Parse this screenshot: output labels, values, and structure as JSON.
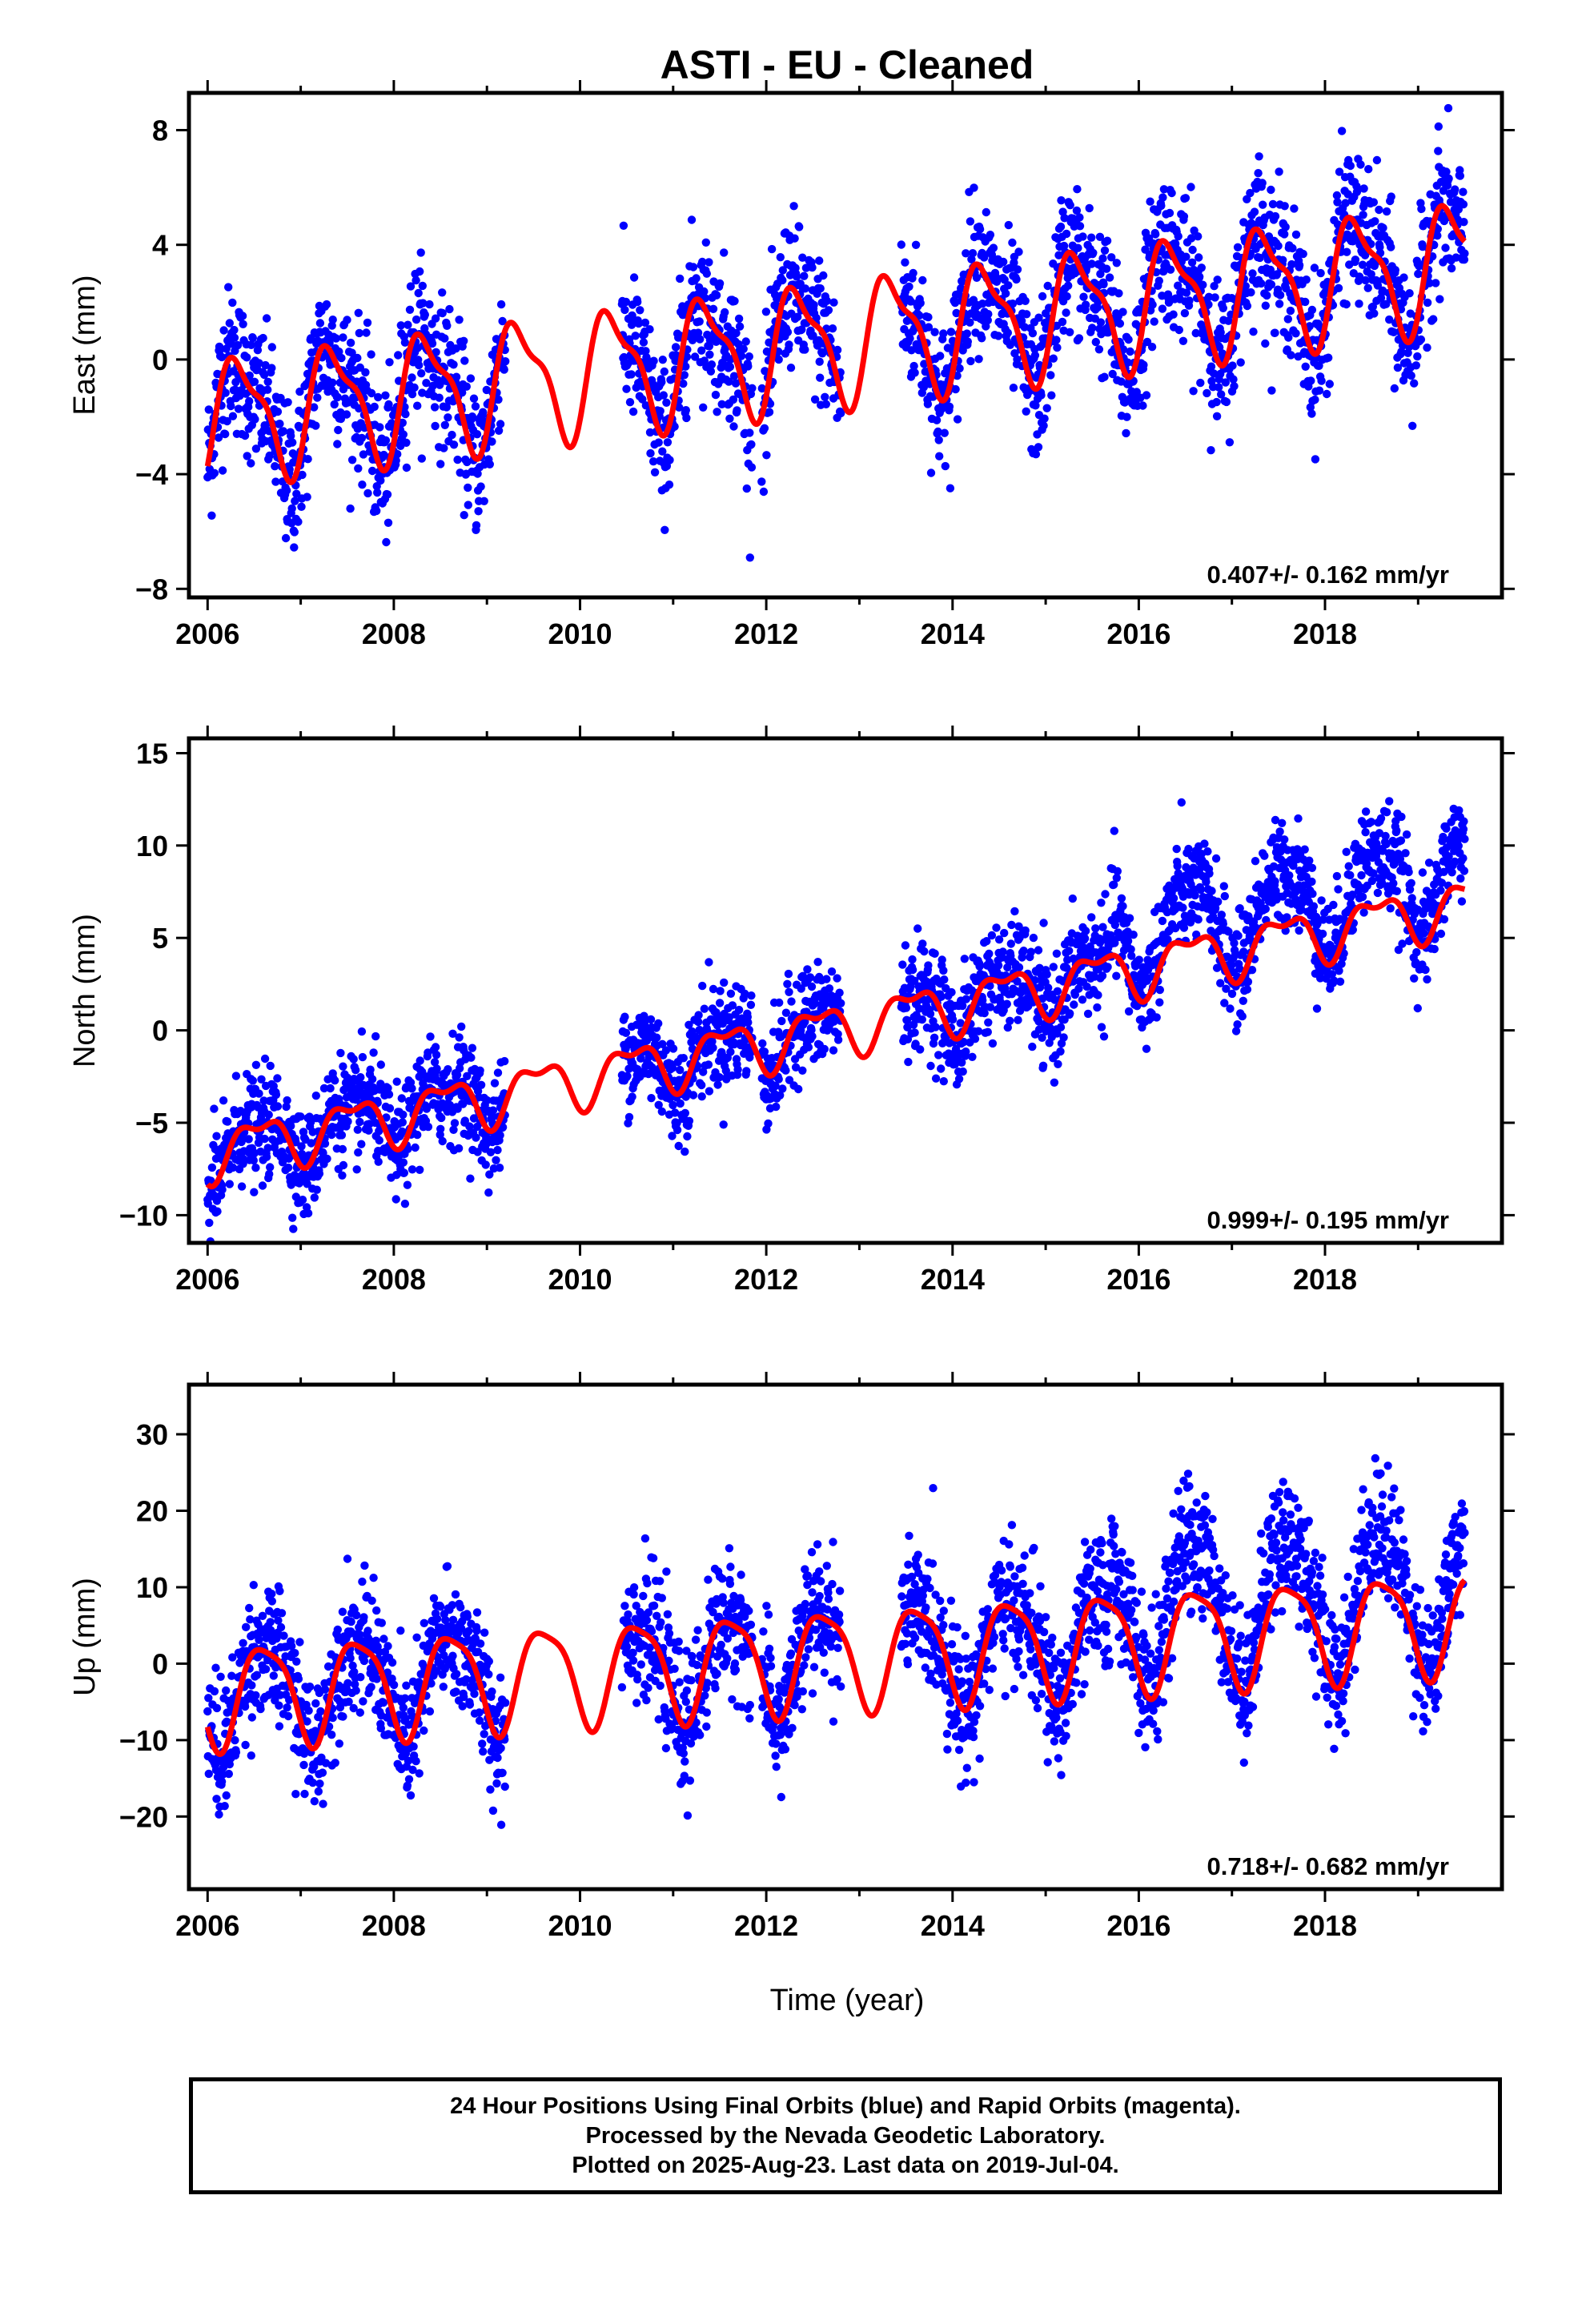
{
  "figure": {
    "title": "ASTI  - EU - Cleaned"
  },
  "chart_data": [
    {
      "type": "scatter",
      "title": "ASTI  - EU - Cleaned",
      "xlabel": "",
      "ylabel": "East (mm)",
      "xlim": [
        2005.8,
        2019.9
      ],
      "ylim": [
        -8.3,
        9.3
      ],
      "xticks": [
        2006,
        2008,
        2010,
        2012,
        2014,
        2016,
        2018
      ],
      "yticks": [
        -8,
        -4,
        0,
        4,
        8
      ],
      "ytick_labels": [
        "−8",
        "−4",
        "0",
        "4",
        "8"
      ],
      "rate_text": "0.407+/- 0.162 mm/yr",
      "legend": "none",
      "grid": false,
      "series": [
        {
          "color": "#0000ff",
          "kind": "daily positions",
          "segments": [
            [
              2006.0,
              2009.2
            ],
            [
              2010.45,
              2011.85
            ],
            [
              2011.95,
              2012.8
            ],
            [
              2013.45,
              2019.5
            ]
          ],
          "model": {
            "offset": -2.1,
            "rate": 0.407,
            "annual_amp": 2.0,
            "annual_peak": 2006.35,
            "semiannual_amp": 0.7,
            "semiannual_peak": 2006.18,
            "noise_sd": 1.25
          }
        },
        {
          "color": "#ff0000",
          "kind": "model fit",
          "x_range": [
            2006.0,
            2019.5
          ],
          "model": {
            "offset": -2.1,
            "rate": 0.407,
            "annual_amp": 2.0,
            "annual_peak": 2006.35,
            "semiannual_amp": 0.7,
            "semiannual_peak": 2006.18
          }
        }
      ]
    },
    {
      "type": "scatter",
      "xlabel": "",
      "ylabel": "North (mm)",
      "xlim": [
        2005.8,
        2019.9
      ],
      "ylim": [
        -11.5,
        15.8
      ],
      "xticks": [
        2006,
        2008,
        2010,
        2012,
        2014,
        2016,
        2018
      ],
      "yticks": [
        -10,
        -5,
        0,
        5,
        10,
        15
      ],
      "ytick_labels": [
        "−10",
        "−5",
        "0",
        "5",
        "10",
        "15"
      ],
      "rate_text": "0.999+/- 0.195 mm/yr",
      "legend": "none",
      "grid": false,
      "series": [
        {
          "color": "#0000ff",
          "kind": "daily positions",
          "segments": [
            [
              2006.0,
              2009.2
            ],
            [
              2010.45,
              2011.85
            ],
            [
              2011.95,
              2012.8
            ],
            [
              2013.45,
              2019.5
            ]
          ],
          "model": {
            "offset": -6.6,
            "rate": 0.999,
            "annual_amp": 1.3,
            "annual_peak": 2006.55,
            "semiannual_amp": 0.6,
            "semiannual_peak": 2006.3,
            "noise_sd": 1.4,
            "step_at": 2015.7,
            "step_size": 2.8
          }
        },
        {
          "color": "#ff0000",
          "kind": "model fit",
          "x_range": [
            2006.0,
            2019.5
          ],
          "model": {
            "offset": -6.6,
            "rate": 0.999,
            "annual_amp": 1.3,
            "annual_peak": 2006.55,
            "semiannual_amp": 0.6,
            "semiannual_peak": 2006.3
          }
        }
      ]
    },
    {
      "type": "scatter",
      "xlabel": "Time (year)",
      "ylabel": "Up (mm)",
      "xlim": [
        2005.8,
        2019.9
      ],
      "ylim": [
        -29.5,
        36.5
      ],
      "xticks": [
        2006,
        2008,
        2010,
        2012,
        2014,
        2016,
        2018
      ],
      "yticks": [
        -20,
        -10,
        0,
        10,
        20,
        30
      ],
      "ytick_labels": [
        "−20",
        "−10",
        "0",
        "10",
        "20",
        "30"
      ],
      "rate_text": "0.718+/- 0.682 mm/yr",
      "legend": "none",
      "grid": false,
      "series": [
        {
          "color": "#0000ff",
          "kind": "daily positions",
          "segments": [
            [
              2006.0,
              2009.2
            ],
            [
              2010.45,
              2011.85
            ],
            [
              2011.95,
              2012.8
            ],
            [
              2013.45,
              2019.5
            ]
          ],
          "model": {
            "offset": -4.0,
            "rate": 0.718,
            "annual_amp": 6.5,
            "annual_peak": 2006.62,
            "semiannual_amp": 1.5,
            "semiannual_peak": 2006.4,
            "noise_sd": 4.2,
            "step_at": 2015.7,
            "step_size": 7.0
          }
        },
        {
          "color": "#ff0000",
          "kind": "model fit",
          "x_range": [
            2006.0,
            2019.5
          ],
          "model": {
            "offset": -4.0,
            "rate": 0.718,
            "annual_amp": 6.5,
            "annual_peak": 2006.62,
            "semiannual_amp": 1.5,
            "semiannual_peak": 2006.4
          }
        }
      ]
    }
  ],
  "footer": {
    "line1": "24 Hour Positions Using Final Orbits (blue) and Rapid Orbits (magenta).",
    "line2": "Processed by the Nevada Geodetic Laboratory.",
    "line3": "Plotted on 2025-Aug-23. Last data on 2019-Jul-04."
  }
}
